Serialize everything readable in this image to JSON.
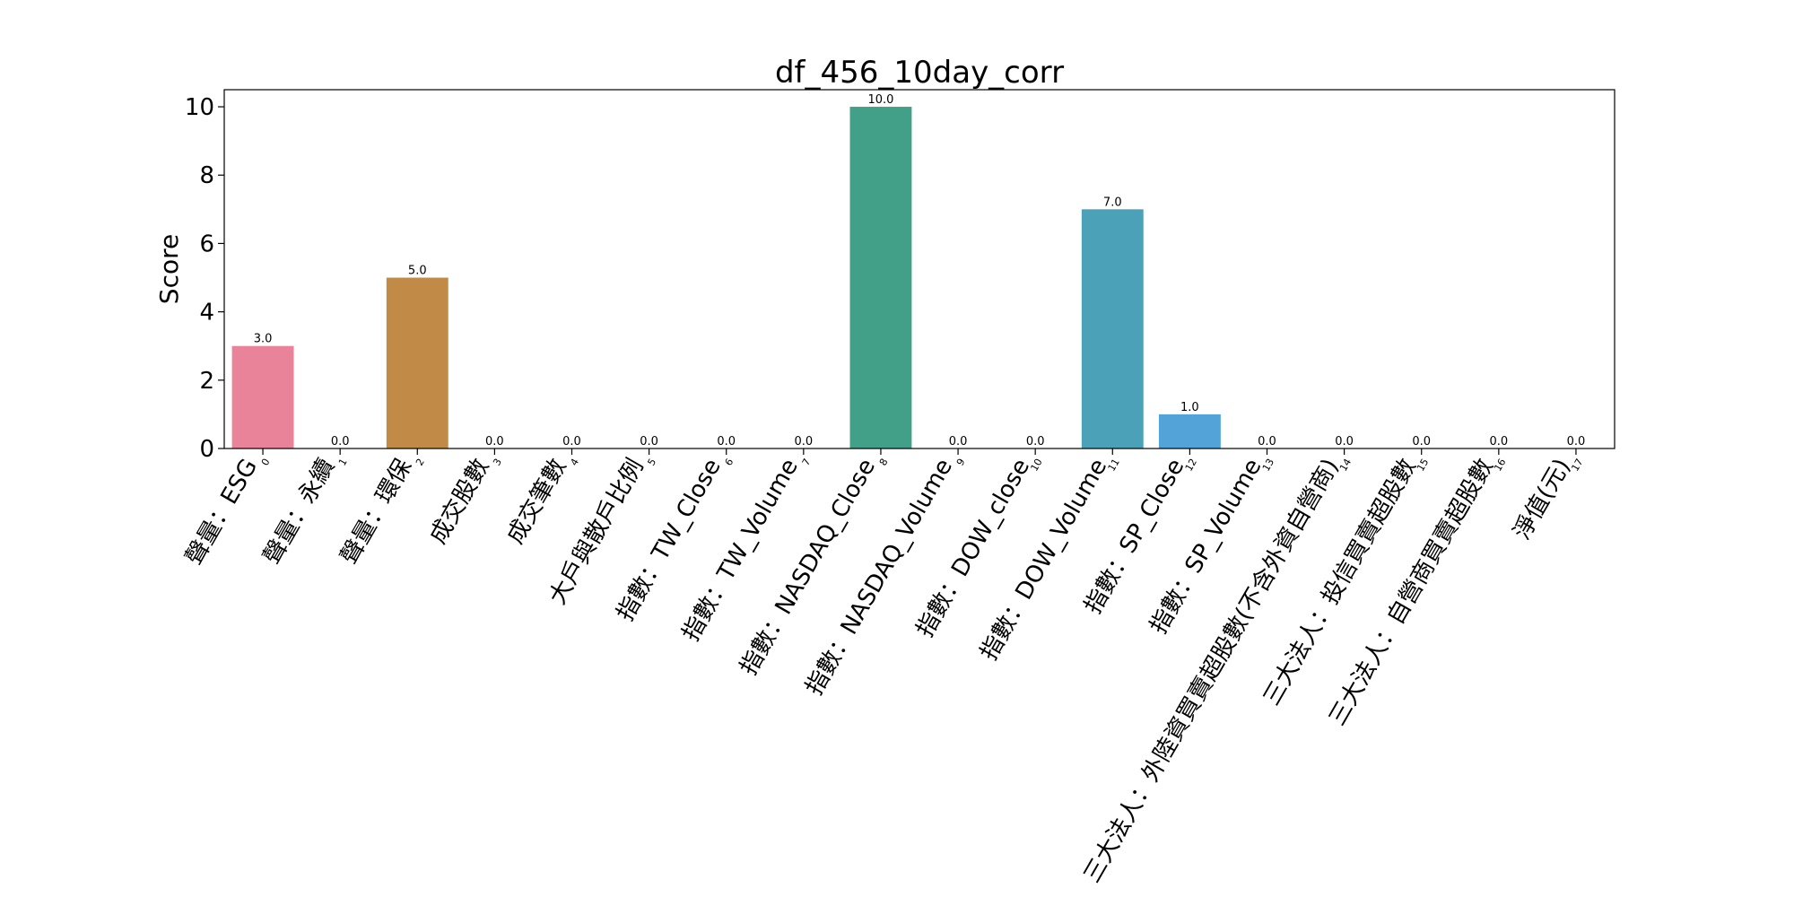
{
  "chart_data": {
    "type": "bar",
    "title": "df_456_10day_corr",
    "xlabel": "",
    "ylabel": "Score",
    "ylim": [
      0,
      10.5
    ],
    "yticks": [
      "0",
      "2",
      "4",
      "6",
      "8",
      "10"
    ],
    "categories": [
      "聲量：ESG",
      "聲量：永續",
      "聲量：環保",
      "成交股數",
      "成交筆數",
      "大戶與散戶比例",
      "指數：TW_Close",
      "指數：TW_Volume",
      "指數：NASDAQ_Close",
      "指數：NASDAQ_Volume",
      "指數：DOW_close",
      "指數：DOW_Volume",
      "指數：SP_Close",
      "指數：SP_Volume",
      "三大法人：外陸資買賣超股數(不含外資自營商)",
      "三大法人：投信買賣超股數",
      "三大法人：自營商買賣超股數",
      "淨值(元)"
    ],
    "category_indices": [
      "0",
      "1",
      "2",
      "3",
      "4",
      "5",
      "6",
      "7",
      "8",
      "9",
      "10",
      "11",
      "12",
      "13",
      "14",
      "15",
      "16",
      "17"
    ],
    "values": [
      3,
      0,
      5,
      0,
      0,
      0,
      0,
      0,
      10,
      0,
      0,
      7,
      1,
      0,
      0,
      0,
      0,
      0
    ],
    "value_labels": [
      "3.0",
      "0.0",
      "5.0",
      "0.0",
      "0.0",
      "0.0",
      "0.0",
      "0.0",
      "10.0",
      "0.0",
      "0.0",
      "7.0",
      "1.0",
      "0.0",
      "0.0",
      "0.0",
      "0.0",
      "0.0"
    ],
    "colors": [
      "#e8839a",
      "#dd8c6a",
      "#c18b47",
      "#aa9546",
      "#919b44",
      "#6ba145",
      "#45a55a",
      "#48a385",
      "#42a088",
      "#45a09c",
      "#47a1a8",
      "#4aa1b8",
      "#53a2d8",
      "#9a99e2",
      "#c18be2",
      "#e07ed8",
      "#e57eb9",
      "#e8849f"
    ],
    "grid": false,
    "legend": "none"
  }
}
